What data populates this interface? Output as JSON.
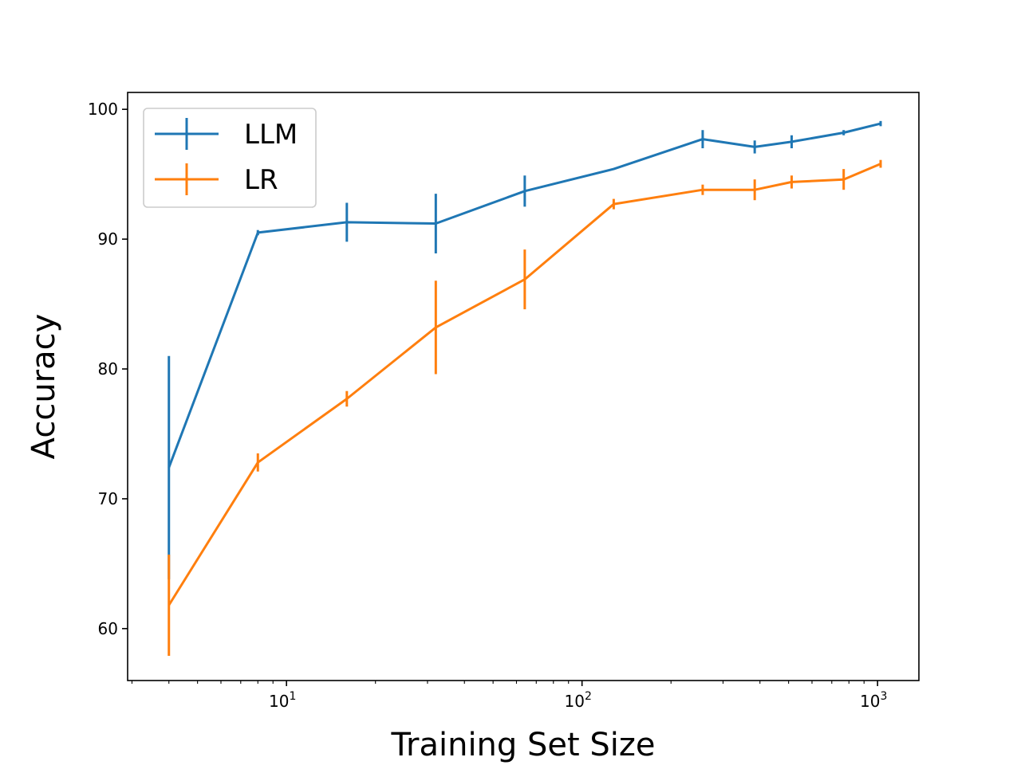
{
  "chart_data": {
    "type": "line",
    "title": "",
    "xlabel": "Training Set Size",
    "ylabel": "Accuracy",
    "xscale": "log",
    "xlim": [
      2.9,
      1380
    ],
    "ylim": [
      56,
      101.3
    ],
    "grid": false,
    "legend_position": "top-left",
    "x_ticks": [
      {
        "value": 10,
        "base": "10",
        "exp": "1"
      },
      {
        "value": 100,
        "base": "10",
        "exp": "2"
      },
      {
        "value": 1000,
        "base": "10",
        "exp": "3"
      }
    ],
    "y_ticks": [
      {
        "value": 60,
        "label": "60"
      },
      {
        "value": 70,
        "label": "70"
      },
      {
        "value": 80,
        "label": "80"
      },
      {
        "value": 90,
        "label": "90"
      },
      {
        "value": 100,
        "label": "100"
      }
    ],
    "x": [
      4,
      8,
      16,
      32,
      64,
      128,
      256,
      384,
      512,
      768,
      1024
    ],
    "series": [
      {
        "name": "LLM",
        "color": "#1f77b4",
        "values": [
          72.4,
          90.5,
          91.3,
          91.2,
          93.7,
          95.4,
          97.7,
          97.1,
          97.5,
          98.2,
          98.9
        ],
        "errors": [
          8.6,
          0.2,
          1.5,
          2.3,
          1.2,
          0.0,
          0.7,
          0.5,
          0.5,
          0.2,
          0.2
        ]
      },
      {
        "name": "LR",
        "color": "#ff7f0e",
        "values": [
          61.8,
          72.8,
          77.7,
          83.2,
          86.9,
          92.7,
          93.8,
          93.8,
          94.4,
          94.6,
          95.8
        ],
        "errors": [
          3.9,
          0.7,
          0.6,
          3.6,
          2.3,
          0.4,
          0.4,
          0.8,
          0.5,
          0.8,
          0.3
        ]
      }
    ]
  }
}
